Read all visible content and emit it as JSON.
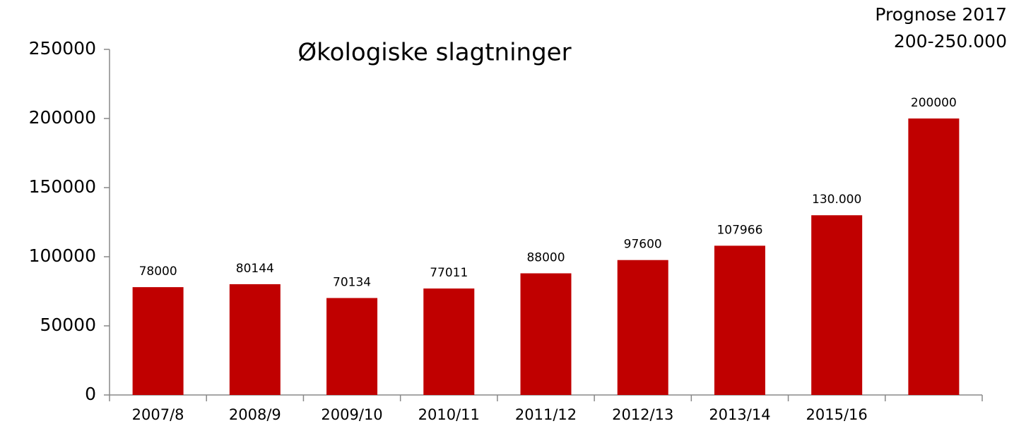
{
  "chart_data": {
    "type": "bar",
    "title": "Økologiske slagtninger",
    "annotation": [
      "Prognose 2017",
      "200-250.000"
    ],
    "categories": [
      "2007/8",
      "2008/9",
      "2009/10",
      "2010/11",
      "2011/12",
      "2012/13",
      "2013/14",
      "2015/16",
      null
    ],
    "values": [
      78000,
      80144,
      70134,
      77011,
      88000,
      97600,
      107966,
      130000,
      200000
    ],
    "value_labels": [
      "78000",
      "80144",
      "70134",
      "77011",
      "88000",
      "97600",
      "107966",
      "130.000",
      "200000"
    ],
    "color": "#c00000",
    "ylim": [
      0,
      250000
    ],
    "yticks": [
      0,
      50000,
      100000,
      150000,
      200000,
      250000
    ],
    "grid": false
  }
}
